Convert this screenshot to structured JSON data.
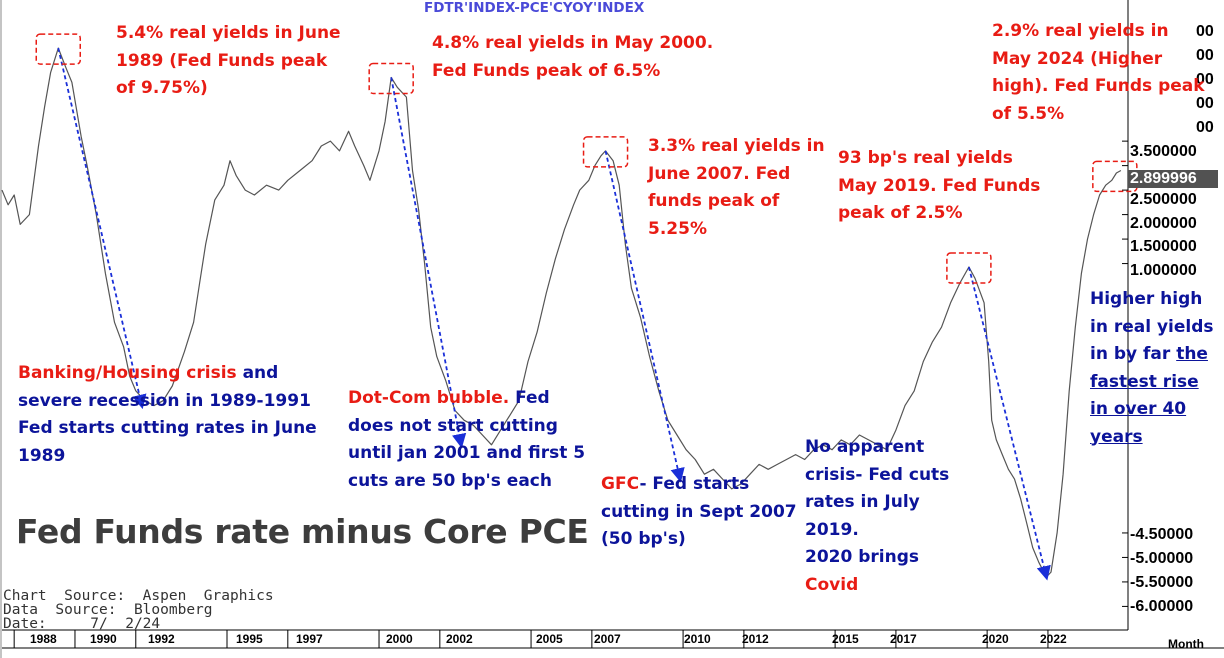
{
  "chart_data": {
    "type": "line",
    "ticker": "FDTR'INDEX-PCE'CYOY'INDEX",
    "title": "Fed Funds rate minus Core PCE",
    "x_label": "Month",
    "x_range": [
      1987.6,
      2024.6
    ],
    "x_ticks": [
      "1988",
      "1990",
      "1992",
      "1995",
      "1997",
      "2000",
      "2002",
      "2005",
      "2007",
      "2010",
      "2012",
      "2015",
      "2017",
      "2020",
      "2022"
    ],
    "y_range": [
      -6.4,
      6.3
    ],
    "y_ticks": [
      "3.500000",
      "3.000000",
      "2.500000",
      "2.000000",
      "1.500000",
      "1.000000",
      "-4.50000",
      "-5.00000",
      "-5.50000",
      "-6.00000"
    ],
    "y_ticks_clipped": [
      "00",
      "00",
      "00",
      "00",
      "00"
    ],
    "last_value": "2.899996",
    "series": [
      {
        "color": "#555555",
        "points": [
          [
            1987.6,
            2.5
          ],
          [
            1987.8,
            2.2
          ],
          [
            1988.0,
            2.4
          ],
          [
            1988.2,
            1.8
          ],
          [
            1988.5,
            2.0
          ],
          [
            1988.8,
            3.4
          ],
          [
            1989.0,
            4.2
          ],
          [
            1989.2,
            4.9
          ],
          [
            1989.45,
            5.4
          ],
          [
            1989.7,
            5.0
          ],
          [
            1989.9,
            4.7
          ],
          [
            1990.2,
            3.6
          ],
          [
            1990.4,
            3.0
          ],
          [
            1990.7,
            2.0
          ],
          [
            1991.0,
            0.8
          ],
          [
            1991.3,
            -0.2
          ],
          [
            1991.6,
            -0.7
          ],
          [
            1991.8,
            -1.3
          ],
          [
            1992.0,
            -1.6
          ],
          [
            1992.3,
            -1.8
          ],
          [
            1992.6,
            -1.9
          ],
          [
            1992.9,
            -1.8
          ],
          [
            1993.2,
            -1.5
          ],
          [
            1993.6,
            -0.8
          ],
          [
            1993.9,
            -0.2
          ],
          [
            1994.1,
            0.6
          ],
          [
            1994.3,
            1.4
          ],
          [
            1994.6,
            2.3
          ],
          [
            1994.9,
            2.6
          ],
          [
            1995.1,
            3.1
          ],
          [
            1995.3,
            2.8
          ],
          [
            1995.6,
            2.5
          ],
          [
            1995.9,
            2.4
          ],
          [
            1996.3,
            2.6
          ],
          [
            1996.7,
            2.5
          ],
          [
            1997.0,
            2.7
          ],
          [
            1997.4,
            2.9
          ],
          [
            1997.8,
            3.1
          ],
          [
            1998.1,
            3.4
          ],
          [
            1998.4,
            3.5
          ],
          [
            1998.7,
            3.3
          ],
          [
            1999.0,
            3.7
          ],
          [
            1999.2,
            3.4
          ],
          [
            1999.5,
            3.0
          ],
          [
            1999.7,
            2.7
          ],
          [
            2000.0,
            3.3
          ],
          [
            2000.2,
            3.9
          ],
          [
            2000.4,
            4.8
          ],
          [
            2000.6,
            4.6
          ],
          [
            2000.9,
            4.4
          ],
          [
            2001.1,
            2.9
          ],
          [
            2001.3,
            2.1
          ],
          [
            2001.5,
            1.0
          ],
          [
            2001.7,
            -0.3
          ],
          [
            2001.9,
            -0.9
          ],
          [
            2002.2,
            -1.4
          ],
          [
            2002.5,
            -2.0
          ],
          [
            2002.8,
            -2.2
          ],
          [
            2003.1,
            -2.3
          ],
          [
            2003.4,
            -2.5
          ],
          [
            2003.7,
            -2.7
          ],
          [
            2004.0,
            -2.4
          ],
          [
            2004.3,
            -2.1
          ],
          [
            2004.6,
            -1.8
          ],
          [
            2004.9,
            -1.0
          ],
          [
            2005.2,
            -0.4
          ],
          [
            2005.5,
            0.4
          ],
          [
            2005.8,
            1.1
          ],
          [
            2006.1,
            1.7
          ],
          [
            2006.4,
            2.2
          ],
          [
            2006.6,
            2.5
          ],
          [
            2006.9,
            2.7
          ],
          [
            2007.1,
            3.0
          ],
          [
            2007.3,
            3.2
          ],
          [
            2007.45,
            3.3
          ],
          [
            2007.7,
            3.1
          ],
          [
            2007.9,
            2.6
          ],
          [
            2008.1,
            1.4
          ],
          [
            2008.3,
            0.5
          ],
          [
            2008.6,
            -0.1
          ],
          [
            2008.9,
            -0.9
          ],
          [
            2009.2,
            -1.6
          ],
          [
            2009.5,
            -2.2
          ],
          [
            2009.8,
            -2.5
          ],
          [
            2010.1,
            -2.8
          ],
          [
            2010.4,
            -3.0
          ],
          [
            2010.7,
            -3.3
          ],
          [
            2011.0,
            -3.2
          ],
          [
            2011.3,
            -3.4
          ],
          [
            2011.6,
            -3.6
          ],
          [
            2011.9,
            -3.5
          ],
          [
            2012.2,
            -3.3
          ],
          [
            2012.5,
            -3.1
          ],
          [
            2012.8,
            -3.2
          ],
          [
            2013.1,
            -3.1
          ],
          [
            2013.4,
            -3.0
          ],
          [
            2013.7,
            -2.9
          ],
          [
            2014.0,
            -3.0
          ],
          [
            2014.3,
            -2.8
          ],
          [
            2014.6,
            -2.7
          ],
          [
            2014.9,
            -2.8
          ],
          [
            2015.2,
            -2.6
          ],
          [
            2015.5,
            -2.7
          ],
          [
            2015.8,
            -2.5
          ],
          [
            2016.1,
            -2.6
          ],
          [
            2016.4,
            -2.7
          ],
          [
            2016.7,
            -2.8
          ],
          [
            2017.0,
            -2.4
          ],
          [
            2017.3,
            -1.9
          ],
          [
            2017.6,
            -1.6
          ],
          [
            2017.9,
            -1.0
          ],
          [
            2018.2,
            -0.6
          ],
          [
            2018.5,
            -0.3
          ],
          [
            2018.8,
            0.2
          ],
          [
            2019.1,
            0.6
          ],
          [
            2019.4,
            0.93
          ],
          [
            2019.6,
            0.7
          ],
          [
            2019.9,
            0.2
          ],
          [
            2020.05,
            -1.0
          ],
          [
            2020.15,
            -2.2
          ],
          [
            2020.3,
            -2.6
          ],
          [
            2020.5,
            -2.9
          ],
          [
            2020.7,
            -3.2
          ],
          [
            2020.9,
            -3.4
          ],
          [
            2021.1,
            -3.8
          ],
          [
            2021.3,
            -4.3
          ],
          [
            2021.5,
            -4.8
          ],
          [
            2021.7,
            -5.1
          ],
          [
            2021.95,
            -5.4
          ],
          [
            2022.1,
            -5.3
          ],
          [
            2022.3,
            -4.5
          ],
          [
            2022.5,
            -3.3
          ],
          [
            2022.7,
            -1.6
          ],
          [
            2022.9,
            -0.3
          ],
          [
            2023.1,
            0.8
          ],
          [
            2023.3,
            1.5
          ],
          [
            2023.5,
            2.0
          ],
          [
            2023.7,
            2.4
          ],
          [
            2023.9,
            2.6
          ],
          [
            2024.1,
            2.7
          ],
          [
            2024.25,
            2.85
          ],
          [
            2024.4,
            2.9
          ]
        ]
      }
    ],
    "annotations": [
      {
        "x_from": 1989.45,
        "y_from": 5.4,
        "x_to": 1992.2,
        "y_to": -1.9
      },
      {
        "x_from": 2000.4,
        "y_from": 4.8,
        "x_to": 2002.7,
        "y_to": -2.7
      },
      {
        "x_from": 2007.45,
        "y_from": 3.3,
        "x_to": 2009.9,
        "y_to": -3.4
      },
      {
        "x_from": 2019.4,
        "y_from": 0.93,
        "x_to": 2021.95,
        "y_to": -5.4
      }
    ],
    "peak_boxes": [
      {
        "x": 1989.45,
        "y": 5.4
      },
      {
        "x": 2000.4,
        "y": 4.8
      },
      {
        "x": 2007.45,
        "y": 3.3
      },
      {
        "x": 2019.4,
        "y": 0.93
      },
      {
        "x": 2024.2,
        "y": 2.8
      }
    ]
  },
  "source_lines": [
    "Chart  Source:  Aspen  Graphics",
    "Data  Source:  Bloomberg",
    "Date:     7/  2/24"
  ],
  "notes": {
    "peak_1989": [
      "5.4% real yields in June",
      "1989 (Fed Funds peak",
      "of 9.75%)"
    ],
    "peak_2000": [
      "4.8% real yields in May 2000.",
      "Fed Funds peak of 6.5%"
    ],
    "peak_2007": [
      "3.3% real yields in",
      "June 2007. Fed",
      "funds peak of",
      "5.25%"
    ],
    "peak_2019": [
      "93 bp's  real yields",
      "May 2019. Fed Funds",
      "peak of 2.5%"
    ],
    "peak_2024": [
      "2.9% real yields in",
      "May 2024 (Higher",
      "high). Fed Funds peak",
      "of 5.5%"
    ],
    "banking": {
      "red": "Banking/Housing crisis",
      "blue_tail": " and",
      "lines": [
        "severe recession in 1989-1991",
        "Fed starts cutting rates  in June",
        "1989"
      ]
    },
    "dotcom": {
      "red": "Dot-Com bubble.",
      "blue_tail": " Fed",
      "lines": [
        "does not start cutting",
        "until jan 2001 and first 5",
        "cuts are 50 bp's each"
      ]
    },
    "gfc": {
      "red": "GFC",
      "blue_tail": "- Fed starts",
      "lines": [
        "cutting in Sept 2007",
        "(50 bp's)"
      ]
    },
    "covid": {
      "lines": [
        "No apparent",
        "crisis- Fed cuts",
        "rates in July",
        "2019.",
        "2020 brings"
      ],
      "red_line": "Covid"
    },
    "higher_high": {
      "lines": [
        "Higher high",
        "in real yields",
        "in by far "
      ],
      "underlined": [
        "the",
        "fastest rise",
        "in over 40",
        "years"
      ]
    }
  }
}
